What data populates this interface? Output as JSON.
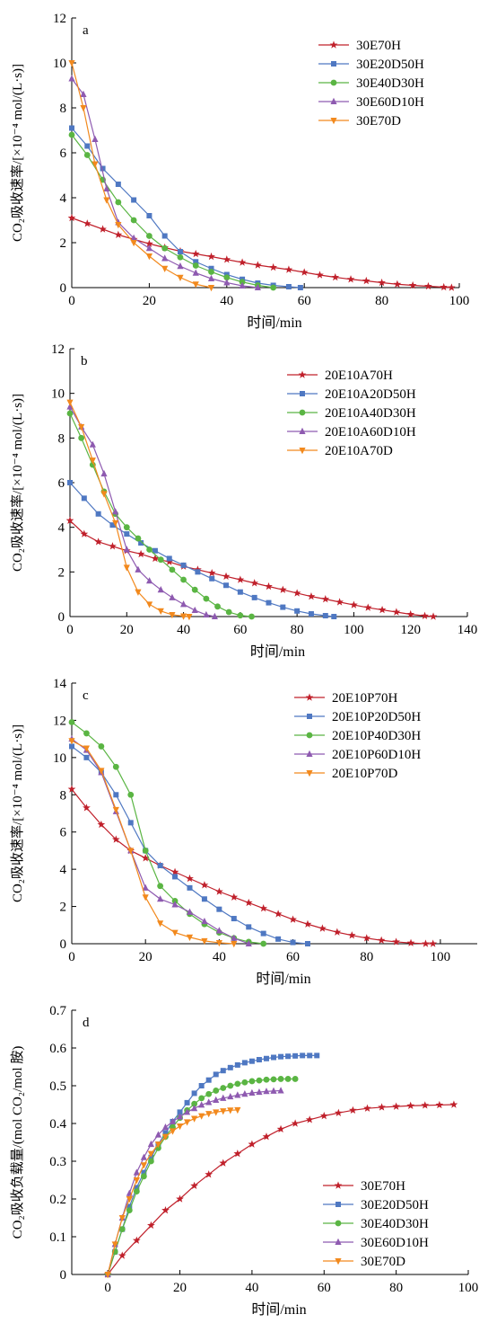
{
  "colors": {
    "s1": "#c0202b",
    "s2": "#4f78c2",
    "s3": "#5ab543",
    "s4": "#8e5ab0",
    "s5": "#f2891d"
  },
  "chart_data": [
    {
      "type": "line",
      "panel_label": "a",
      "xlabel": "时间/min",
      "ylabel": "CO₂吸收速率/[×10⁻⁴ mol/(L·s)]",
      "xlim": [
        0,
        100
      ],
      "ylim": [
        0,
        12
      ],
      "xticks": [
        "0",
        "20",
        "40",
        "60",
        "80",
        "100"
      ],
      "yticks": [
        "0",
        "2",
        "4",
        "6",
        "8",
        "10",
        "12"
      ],
      "legend_position": "top-right",
      "series": [
        {
          "name": "30E70H",
          "marker": "star",
          "color": "#c0202b",
          "x": [
            0,
            4,
            8,
            12,
            16,
            20,
            24,
            28,
            32,
            36,
            40,
            44,
            48,
            52,
            56,
            60,
            64,
            68,
            72,
            76,
            80,
            84,
            88,
            92,
            96,
            98
          ],
          "y": [
            3.1,
            2.85,
            2.6,
            2.35,
            2.15,
            1.95,
            1.78,
            1.62,
            1.5,
            1.38,
            1.25,
            1.12,
            1.0,
            0.9,
            0.8,
            0.68,
            0.56,
            0.46,
            0.37,
            0.3,
            0.22,
            0.15,
            0.1,
            0.06,
            0.02,
            0.0
          ]
        },
        {
          "name": "30E20D50H",
          "marker": "square",
          "color": "#4f78c2",
          "x": [
            0,
            4,
            8,
            12,
            16,
            20,
            24,
            28,
            32,
            36,
            40,
            44,
            48,
            52,
            56,
            59
          ],
          "y": [
            7.1,
            6.3,
            5.3,
            4.6,
            3.9,
            3.2,
            2.3,
            1.6,
            1.15,
            0.85,
            0.58,
            0.37,
            0.2,
            0.1,
            0.04,
            0.0
          ]
        },
        {
          "name": "30E40D30H",
          "marker": "circle",
          "color": "#5ab543",
          "x": [
            0,
            4,
            8,
            12,
            16,
            20,
            24,
            28,
            32,
            36,
            40,
            44,
            48,
            52
          ],
          "y": [
            6.8,
            5.9,
            4.8,
            3.8,
            3.0,
            2.3,
            1.75,
            1.35,
            0.98,
            0.7,
            0.45,
            0.25,
            0.1,
            0.0
          ]
        },
        {
          "name": "30E60D10H",
          "marker": "triangle-up",
          "color": "#8e5ab0",
          "x": [
            0,
            3,
            6,
            9,
            12,
            16,
            20,
            24,
            28,
            32,
            36,
            40,
            44,
            48
          ],
          "y": [
            9.3,
            8.6,
            6.6,
            4.4,
            2.9,
            2.2,
            1.75,
            1.3,
            0.95,
            0.65,
            0.4,
            0.22,
            0.08,
            0.0
          ]
        },
        {
          "name": "30E70D",
          "marker": "triangle-down",
          "color": "#f2891d",
          "x": [
            0,
            3,
            6,
            9,
            12,
            16,
            20,
            24,
            28,
            32,
            36
          ],
          "y": [
            10.0,
            8.0,
            5.5,
            3.9,
            2.8,
            2.0,
            1.4,
            0.85,
            0.45,
            0.15,
            0.0
          ]
        }
      ]
    },
    {
      "type": "line",
      "panel_label": "b",
      "xlabel": "时间/min",
      "ylabel": "CO₂吸收速率/[×10⁻⁴ mol/(L·s)]",
      "xlim": [
        0,
        140
      ],
      "ylim": [
        0,
        12
      ],
      "xticks": [
        "0",
        "20",
        "40",
        "60",
        "80",
        "100",
        "120",
        "140"
      ],
      "yticks": [
        "0",
        "2",
        "4",
        "6",
        "8",
        "10",
        "12"
      ],
      "legend_position": "top-right",
      "series": [
        {
          "name": "20E10A70H",
          "marker": "star",
          "color": "#c0202b",
          "x": [
            0,
            5,
            10,
            15,
            20,
            25,
            30,
            35,
            40,
            45,
            50,
            55,
            60,
            65,
            70,
            75,
            80,
            85,
            90,
            95,
            100,
            105,
            110,
            115,
            120,
            125,
            128
          ],
          "y": [
            4.3,
            3.7,
            3.35,
            3.15,
            2.95,
            2.8,
            2.6,
            2.45,
            2.25,
            2.1,
            1.95,
            1.8,
            1.65,
            1.5,
            1.35,
            1.2,
            1.05,
            0.9,
            0.78,
            0.65,
            0.52,
            0.4,
            0.3,
            0.2,
            0.1,
            0.03,
            0.0
          ]
        },
        {
          "name": "20E10A20D50H",
          "marker": "square",
          "color": "#4f78c2",
          "x": [
            0,
            5,
            10,
            15,
            20,
            25,
            30,
            35,
            40,
            45,
            50,
            55,
            60,
            65,
            70,
            75,
            80,
            85,
            90,
            93
          ],
          "y": [
            6.0,
            5.3,
            4.6,
            4.1,
            3.7,
            3.3,
            2.95,
            2.6,
            2.3,
            2.0,
            1.7,
            1.4,
            1.1,
            0.85,
            0.62,
            0.42,
            0.25,
            0.12,
            0.04,
            0.0
          ]
        },
        {
          "name": "20E10A40D30H",
          "marker": "circle",
          "color": "#5ab543",
          "x": [
            0,
            4,
            8,
            12,
            16,
            20,
            24,
            28,
            32,
            36,
            40,
            44,
            48,
            52,
            56,
            60,
            64
          ],
          "y": [
            9.1,
            8.0,
            6.8,
            5.6,
            4.6,
            4.0,
            3.5,
            3.0,
            2.55,
            2.1,
            1.65,
            1.2,
            0.8,
            0.45,
            0.2,
            0.05,
            0.0
          ]
        },
        {
          "name": "20E10A60D10H",
          "marker": "triangle-up",
          "color": "#8e5ab0",
          "x": [
            0,
            4,
            8,
            12,
            16,
            20,
            24,
            28,
            32,
            36,
            40,
            44,
            48,
            51
          ],
          "y": [
            9.4,
            8.5,
            7.7,
            6.4,
            4.7,
            3.0,
            2.1,
            1.6,
            1.2,
            0.85,
            0.55,
            0.28,
            0.08,
            0.0
          ]
        },
        {
          "name": "20E10A70D",
          "marker": "triangle-down",
          "color": "#f2891d",
          "x": [
            0,
            4,
            8,
            12,
            16,
            20,
            24,
            28,
            32,
            36,
            40,
            42
          ],
          "y": [
            9.6,
            8.5,
            7.0,
            5.5,
            4.2,
            2.2,
            1.1,
            0.55,
            0.25,
            0.08,
            0.02,
            0.0
          ]
        }
      ]
    },
    {
      "type": "line",
      "panel_label": "c",
      "xlabel": "时间/min",
      "ylabel": "CO₂吸收速率/[×10⁻⁴ mol/(L·s)]",
      "xlim": [
        0,
        110
      ],
      "ylim": [
        0,
        14
      ],
      "xticks": [
        "0",
        "20",
        "40",
        "60",
        "80",
        "100"
      ],
      "yticks": [
        "0",
        "2",
        "4",
        "6",
        "8",
        "10",
        "12",
        "14"
      ],
      "legend_position": "top-right",
      "series": [
        {
          "name": "20E10P70H",
          "marker": "star",
          "color": "#c0202b",
          "x": [
            0,
            4,
            8,
            12,
            16,
            20,
            24,
            28,
            32,
            36,
            40,
            44,
            48,
            52,
            56,
            60,
            64,
            68,
            72,
            76,
            80,
            84,
            88,
            92,
            96,
            98
          ],
          "y": [
            8.3,
            7.3,
            6.4,
            5.6,
            5.0,
            4.6,
            4.2,
            3.85,
            3.5,
            3.15,
            2.8,
            2.5,
            2.2,
            1.9,
            1.6,
            1.3,
            1.05,
            0.82,
            0.62,
            0.45,
            0.3,
            0.18,
            0.1,
            0.04,
            0.0,
            0.0
          ]
        },
        {
          "name": "20E10P20D50H",
          "marker": "square",
          "color": "#4f78c2",
          "x": [
            0,
            4,
            8,
            12,
            16,
            20,
            24,
            28,
            32,
            36,
            40,
            44,
            48,
            52,
            56,
            60,
            64
          ],
          "y": [
            10.6,
            10.0,
            9.2,
            8.0,
            6.5,
            5.0,
            4.2,
            3.6,
            3.0,
            2.4,
            1.85,
            1.35,
            0.9,
            0.55,
            0.25,
            0.07,
            0.0
          ]
        },
        {
          "name": "20E10P40D30H",
          "marker": "circle",
          "color": "#5ab543",
          "x": [
            0,
            4,
            8,
            12,
            16,
            20,
            24,
            28,
            32,
            36,
            40,
            44,
            48,
            52
          ],
          "y": [
            11.9,
            11.3,
            10.6,
            9.5,
            8.0,
            5.0,
            3.1,
            2.3,
            1.6,
            1.05,
            0.6,
            0.3,
            0.1,
            0.0
          ]
        },
        {
          "name": "20E10P60D10H",
          "marker": "triangle-up",
          "color": "#8e5ab0",
          "x": [
            0,
            4,
            8,
            12,
            16,
            20,
            24,
            28,
            32,
            36,
            40,
            44,
            48
          ],
          "y": [
            11.0,
            10.4,
            9.2,
            7.1,
            5.0,
            3.0,
            2.4,
            2.1,
            1.7,
            1.2,
            0.7,
            0.3,
            0.0
          ]
        },
        {
          "name": "20E10P70D",
          "marker": "triangle-down",
          "color": "#f2891d",
          "x": [
            0,
            4,
            8,
            12,
            16,
            20,
            24,
            28,
            32,
            36,
            40,
            44
          ],
          "y": [
            10.9,
            10.5,
            9.3,
            7.2,
            5.0,
            2.5,
            1.1,
            0.6,
            0.35,
            0.15,
            0.05,
            0.0
          ]
        }
      ]
    },
    {
      "type": "line",
      "panel_label": "d",
      "xlabel": "时间/min",
      "ylabel": "CO₂吸收负载量/(mol CO₂/mol 胺)",
      "xlim": [
        -10,
        100
      ],
      "ylim": [
        0,
        0.7
      ],
      "xticks": [
        "0",
        "20",
        "40",
        "60",
        "80",
        "100"
      ],
      "yticks": [
        "0",
        "0.1",
        "0.2",
        "0.3",
        "0.4",
        "0.5",
        "0.6",
        "0.7"
      ],
      "legend_position": "bottom-right",
      "series": [
        {
          "name": "30E70H",
          "marker": "star",
          "color": "#c0202b",
          "x": [
            0,
            4,
            8,
            12,
            16,
            20,
            24,
            28,
            32,
            36,
            40,
            44,
            48,
            52,
            56,
            60,
            64,
            68,
            72,
            76,
            80,
            84,
            88,
            92,
            96
          ],
          "y": [
            0.0,
            0.05,
            0.09,
            0.13,
            0.17,
            0.2,
            0.235,
            0.265,
            0.295,
            0.32,
            0.345,
            0.365,
            0.385,
            0.4,
            0.41,
            0.42,
            0.428,
            0.435,
            0.44,
            0.443,
            0.445,
            0.447,
            0.448,
            0.449,
            0.45
          ]
        },
        {
          "name": "30E20D50H",
          "marker": "square",
          "color": "#4f78c2",
          "x": [
            0,
            2,
            4,
            6,
            8,
            10,
            12,
            14,
            16,
            18,
            20,
            22,
            24,
            26,
            28,
            30,
            32,
            34,
            36,
            38,
            40,
            42,
            44,
            46,
            48,
            50,
            52,
            54,
            56,
            58
          ],
          "y": [
            0.0,
            0.06,
            0.12,
            0.18,
            0.23,
            0.27,
            0.31,
            0.345,
            0.375,
            0.405,
            0.43,
            0.455,
            0.48,
            0.5,
            0.515,
            0.53,
            0.54,
            0.548,
            0.555,
            0.561,
            0.565,
            0.569,
            0.572,
            0.575,
            0.577,
            0.578,
            0.579,
            0.58,
            0.58,
            0.58
          ]
        },
        {
          "name": "30E40D30H",
          "marker": "circle",
          "color": "#5ab543",
          "x": [
            0,
            2,
            4,
            6,
            8,
            10,
            12,
            14,
            16,
            18,
            20,
            22,
            24,
            26,
            28,
            30,
            32,
            34,
            36,
            38,
            40,
            42,
            44,
            46,
            48,
            50,
            52
          ],
          "y": [
            0.0,
            0.06,
            0.12,
            0.17,
            0.22,
            0.26,
            0.3,
            0.335,
            0.365,
            0.39,
            0.415,
            0.435,
            0.452,
            0.467,
            0.478,
            0.487,
            0.494,
            0.5,
            0.505,
            0.509,
            0.512,
            0.514,
            0.516,
            0.517,
            0.518,
            0.518,
            0.518
          ]
        },
        {
          "name": "30E60D10H",
          "marker": "triangle-up",
          "color": "#8e5ab0",
          "x": [
            0,
            2,
            4,
            6,
            8,
            10,
            12,
            14,
            16,
            18,
            20,
            22,
            24,
            26,
            28,
            30,
            32,
            34,
            36,
            38,
            40,
            42,
            44,
            46,
            48
          ],
          "y": [
            0.0,
            0.08,
            0.15,
            0.215,
            0.27,
            0.31,
            0.345,
            0.37,
            0.39,
            0.405,
            0.418,
            0.43,
            0.44,
            0.449,
            0.456,
            0.462,
            0.467,
            0.471,
            0.475,
            0.478,
            0.481,
            0.483,
            0.485,
            0.486,
            0.487
          ]
        },
        {
          "name": "30E70D",
          "marker": "triangle-down",
          "color": "#f2891d",
          "x": [
            0,
            2,
            4,
            6,
            8,
            10,
            12,
            14,
            16,
            18,
            20,
            22,
            24,
            26,
            28,
            30,
            32,
            34,
            36
          ],
          "y": [
            0.0,
            0.08,
            0.15,
            0.2,
            0.25,
            0.29,
            0.32,
            0.345,
            0.365,
            0.38,
            0.393,
            0.404,
            0.413,
            0.42,
            0.426,
            0.43,
            0.433,
            0.435,
            0.436
          ]
        }
      ]
    }
  ]
}
